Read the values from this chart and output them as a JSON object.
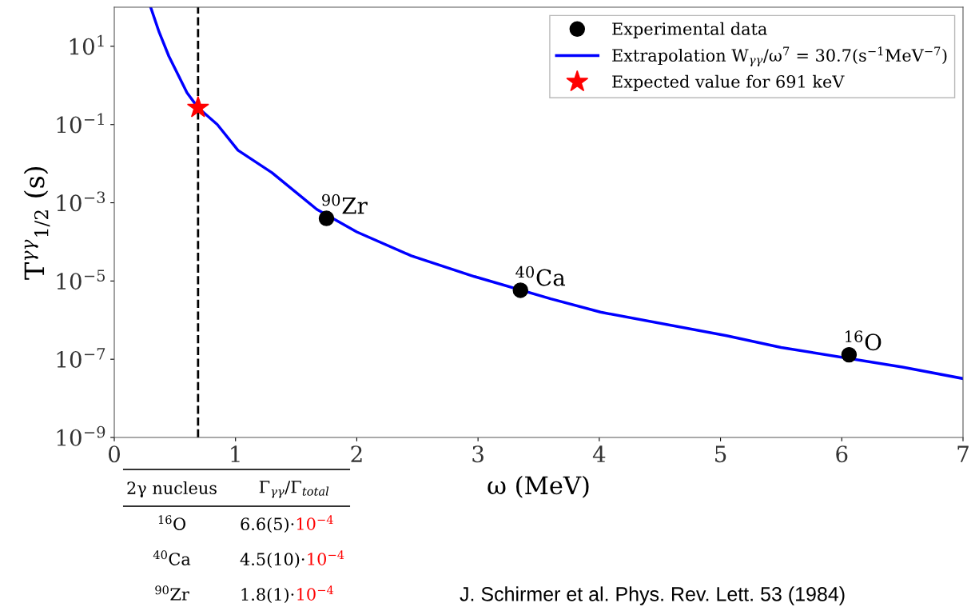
{
  "chart_data": {
    "type": "line",
    "xlabel": "ω (MeV)",
    "ylabel": "T$^{γγ}$$_{1/2}$ (s)",
    "log": "y",
    "xlim": [
      0,
      7
    ],
    "ylim": [
      1e-09,
      100
    ],
    "xticks": [
      0,
      1,
      2,
      3,
      4,
      5,
      6,
      7
    ],
    "yticks": [
      {
        "value": 1e-09,
        "label": "10$^{−9}$"
      },
      {
        "value": 1e-07,
        "label": "10$^{−7}$"
      },
      {
        "value": 1e-05,
        "label": "10$^{−5}$"
      },
      {
        "value": 0.001,
        "label": "10$^{−3}$"
      },
      {
        "value": 0.1,
        "label": "10$^{−1}$"
      },
      {
        "value": 10,
        "label": "10$^{1}$"
      }
    ],
    "grid": false,
    "legend": "top right",
    "series": [
      {
        "name": "Experimental data",
        "type": "scatter",
        "marker": "circle",
        "color": "#000000",
        "x": [
          1.75,
          3.35,
          6.06
        ],
        "values": [
          0.0004,
          5.8e-06,
          1.3e-07
        ]
      },
      {
        "name": "Extrapolation W$_{γγ}$/ω$^{7}$ = 30.7(s$^{−1}$MeV$^{−7}$)",
        "marker": "none",
        "line_style": "solid",
        "color": "#0000ff",
        "x": [
          0.3,
          0.37,
          0.45,
          0.6,
          0.691,
          0.85,
          1.02,
          1.3,
          1.67,
          2.0,
          2.45,
          2.97,
          3.6,
          4.01,
          5.05,
          5.5,
          6.5,
          7.0
        ],
        "values": [
          100,
          23,
          5.6,
          0.65,
          0.27,
          0.1,
          0.022,
          0.0059,
          0.00068,
          0.00018,
          4.4e-05,
          1.3e-05,
          3.5e-06,
          1.6e-06,
          4e-07,
          2e-07,
          6.3e-08,
          3.2e-08
        ]
      },
      {
        "name": "Expected value for 691 keV",
        "type": "scatter",
        "marker": "star",
        "color": "#ff0000",
        "x": [
          0.691
        ],
        "values": [
          0.27
        ]
      }
    ],
    "ref_lines": [
      {
        "axis": "x",
        "value": 0.691,
        "color": "#000000",
        "line_style": "dashed"
      }
    ],
    "annotations": [
      {
        "text": "$^{90}$Zr",
        "x": 1.75,
        "y": 0.0004
      },
      {
        "text": "$^{40}$Ca",
        "x": 3.35,
        "y": 5.8e-06
      },
      {
        "text": "$^{16}$O",
        "x": 6.06,
        "y": 1.3e-07
      },
      "2γ nucleus",
      "Γ$_{γγ}$/Γ$_{total}$",
      "$^{16}$O",
      "6.6(5)·",
      "10$^{−4}$",
      "$^{40}$Ca",
      "4.5(10)·",
      "10$^{−4}$",
      "$^{90}$Zr",
      "1.8(1)·",
      "10$^{−4}$",
      "J. Schirmer et al. Phys. Rev. Lett. 53 (1984)"
    ]
  }
}
